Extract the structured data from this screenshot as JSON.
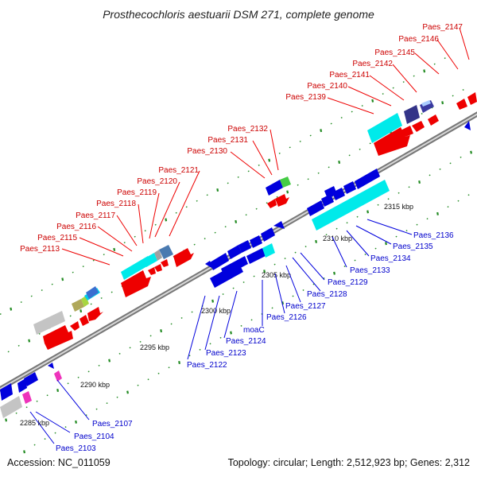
{
  "title": "Prosthecochloris aestuarii DSM 271, complete genome",
  "accession": "Accession: NC_011059",
  "topology": "Topology: circular; Length: 2,512,923 bp; Genes: 2,312",
  "colors": {
    "backbone": "#8a8a8a",
    "forward": "#ee0000",
    "reverse": "#0000dd",
    "cyan": "#00e5ee",
    "grey": "#c8c8c8",
    "magenta": "#ee33bb",
    "tick": "#228b22",
    "forward_label": "#cc0000",
    "reverse_label": "#0000cc"
  },
  "scale_labels": [
    "2285 kbp",
    "2290 kbp",
    "2295 kbp",
    "2300 kbp",
    "2305 kbp",
    "2310 kbp",
    "2315 kbp"
  ],
  "forward_labels": [
    "Paes_2113",
    "Paes_2115",
    "Paes_2116",
    "Paes_2117",
    "Paes_2118",
    "Paes_2119",
    "Paes_2120",
    "Paes_2121",
    "Paes_2130",
    "Paes_2131",
    "Paes_2132",
    "Paes_2139",
    "Paes_2140",
    "Paes_2141",
    "Paes_2142",
    "Paes_2145",
    "Paes_2146",
    "Paes_2147"
  ],
  "reverse_labels": [
    "Paes_2103",
    "Paes_2104",
    "Paes_2107",
    "Paes_2122",
    "Paes_2123",
    "Paes_2124",
    "moaC",
    "Paes_2126",
    "Paes_2127",
    "Paes_2128",
    "Paes_2129",
    "Paes_2133",
    "Paes_2134",
    "Paes_2135",
    "Paes_2136"
  ],
  "forward_genes": [
    {
      "color": "grey",
      "shape": "box"
    },
    {
      "color": "red",
      "shape": "arrow"
    },
    {
      "color": "red",
      "shape": "arrow"
    },
    {
      "color": "red",
      "shape": "arrow"
    },
    {
      "color": "red",
      "shape": "arrow"
    },
    {
      "color": "olive",
      "shape": "box"
    },
    {
      "color": "yellowgreen",
      "shape": "box"
    },
    {
      "color": "cyan",
      "shape": "box"
    },
    {
      "color": "steelblue",
      "shape": "box"
    },
    {
      "color": "cyan",
      "shape": "box"
    },
    {
      "color": "red",
      "shape": "arrow"
    },
    {
      "color": "red",
      "shape": "arrow"
    },
    {
      "color": "red",
      "shape": "arrow"
    },
    {
      "color": "cyan",
      "shape": "box"
    },
    {
      "color": "navy",
      "shape": "box"
    },
    {
      "color": "red",
      "shape": "arrow"
    },
    {
      "color": "red",
      "shape": "arrow"
    },
    {
      "color": "green",
      "shape": "box"
    }
  ],
  "reverse_genes": [
    {
      "color": "blue",
      "shape": "arrow"
    },
    {
      "color": "magenta",
      "shape": "box"
    },
    {
      "color": "blue",
      "shape": "arrow"
    },
    {
      "color": "cyan",
      "shape": "box"
    },
    {
      "color": "blue",
      "shape": "arrow"
    }
  ]
}
